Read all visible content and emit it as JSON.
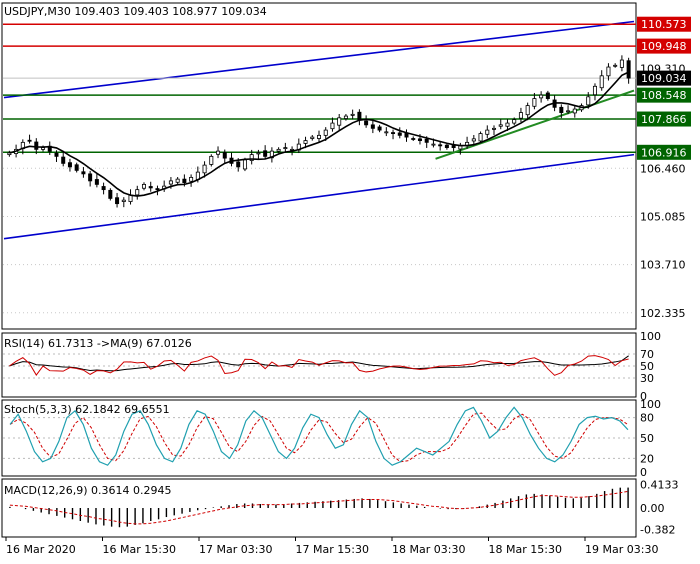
{
  "chart_data": [
    {
      "type": "candlestick",
      "title": "USDJPY,M30  109.403 109.403 108.977 109.034",
      "symbol": "USDJPY,M30",
      "ylim": [
        101.9,
        111.15
      ],
      "y_ticks": [
        {
          "value": 102.335,
          "label": "102.335"
        },
        {
          "value": 103.71,
          "label": "103.710"
        },
        {
          "value": 105.085,
          "label": "105.085"
        },
        {
          "value": 106.46,
          "label": "106.460"
        }
      ],
      "x_labels": [
        "16 Mar 2020",
        "16 Mar 15:30",
        "17 Mar 03:30",
        "17 Mar 15:30",
        "18 Mar 03:30",
        "18 Mar 15:30",
        "19 Mar 03:30"
      ],
      "price_levels": [
        {
          "label": "110.573",
          "value": 110.573,
          "kind": "resistance",
          "color": "#d40000",
          "badge_bg": "#d40000",
          "badge_fg": "#ffffff"
        },
        {
          "label": "109.948",
          "value": 109.948,
          "kind": "resistance",
          "color": "#d40000",
          "badge_bg": "#d40000",
          "badge_fg": "#ffffff"
        },
        {
          "label": "109.034",
          "value": 109.034,
          "kind": "current",
          "color": "#c0c0c0",
          "badge_bg": "#000000",
          "badge_fg": "#ffffff"
        },
        {
          "label": "108.548",
          "value": 108.548,
          "kind": "support",
          "color": "#006400",
          "badge_bg": "#006400",
          "badge_fg": "#ffffff"
        },
        {
          "label": "107.866",
          "value": 107.866,
          "kind": "support",
          "color": "#006400",
          "badge_bg": "#006400",
          "badge_fg": "#ffffff"
        },
        {
          "label": "106.916",
          "value": 106.916,
          "kind": "support",
          "color": "#006400",
          "badge_bg": "#006400",
          "badge_fg": "#ffffff"
        }
      ],
      "hidden_tick_label": "109.310",
      "channel": {
        "color": "#0000cc",
        "upper": [
          [
            0,
            108.48
          ],
          [
            1,
            110.65
          ]
        ],
        "lower": [
          [
            0,
            104.45
          ],
          [
            1,
            106.85
          ]
        ]
      },
      "trendline": {
        "color": "#228b22",
        "points": [
          [
            0.685,
            106.73
          ],
          [
            1,
            108.68
          ]
        ]
      },
      "closes": [
        106.9,
        107.0,
        107.2,
        107.25,
        107.0,
        107.05,
        106.95,
        106.8,
        106.6,
        106.5,
        106.4,
        106.3,
        106.1,
        106.0,
        105.85,
        105.6,
        105.45,
        105.55,
        105.7,
        105.85,
        106.0,
        105.9,
        105.85,
        105.95,
        106.1,
        106.15,
        106.05,
        106.2,
        106.35,
        106.55,
        106.8,
        106.95,
        106.75,
        106.6,
        106.5,
        106.7,
        106.85,
        106.9,
        106.8,
        106.95,
        107.0,
        107.05,
        107.0,
        107.15,
        107.25,
        107.35,
        107.4,
        107.55,
        107.75,
        107.9,
        107.95,
        108.0,
        107.85,
        107.7,
        107.6,
        107.55,
        107.5,
        107.45,
        107.4,
        107.35,
        107.3,
        107.25,
        107.2,
        107.15,
        107.1,
        107.05,
        107.05,
        107.1,
        107.2,
        107.3,
        107.45,
        107.55,
        107.6,
        107.7,
        107.75,
        107.85,
        108.05,
        108.25,
        108.45,
        108.55,
        108.45,
        108.2,
        108.05,
        108.1,
        108.15,
        108.25,
        108.5,
        108.8,
        109.1,
        109.35,
        109.4,
        109.55,
        109.034
      ],
      "moving_average_color": "#000000"
    },
    {
      "type": "line",
      "title": "RSI(14) 61.7313  ->MA(9) 67.0126",
      "ylim": [
        0,
        100
      ],
      "y_ticks": [
        {
          "value": 100,
          "label": "100"
        },
        {
          "value": 70,
          "label": "70"
        },
        {
          "value": 50,
          "label": "50"
        },
        {
          "value": 30,
          "label": "30"
        },
        {
          "value": 0,
          "label": "0"
        }
      ],
      "series": [
        {
          "name": "RSI(14)",
          "color": "#d00000",
          "last": 61.7313
        },
        {
          "name": "MA(9)",
          "color": "#000000",
          "last": 67.0126
        }
      ]
    },
    {
      "type": "line",
      "title": "Stoch(5,3,3) 62.1842 69.6551",
      "ylim": [
        0,
        100
      ],
      "y_ticks": [
        {
          "value": 100,
          "label": "100"
        },
        {
          "value": 80,
          "label": "80"
        },
        {
          "value": 50,
          "label": "50"
        },
        {
          "value": 20,
          "label": "20"
        },
        {
          "value": 0,
          "label": "0"
        }
      ],
      "series": [
        {
          "name": "Main",
          "color": "#20a0b0",
          "last": 62.1842
        },
        {
          "name": "Signal",
          "color": "#d00000",
          "last": 69.6551
        }
      ],
      "main_values": [
        70,
        85,
        60,
        30,
        15,
        20,
        45,
        80,
        90,
        70,
        35,
        15,
        10,
        25,
        60,
        85,
        90,
        70,
        40,
        20,
        15,
        35,
        70,
        90,
        85,
        60,
        30,
        20,
        40,
        75,
        90,
        80,
        55,
        30,
        20,
        35,
        65,
        85,
        80,
        55,
        35,
        40,
        70,
        90,
        80,
        45,
        20,
        10,
        15,
        25,
        35,
        30,
        25,
        35,
        45,
        70,
        90,
        95,
        75,
        50,
        60,
        80,
        95,
        80,
        55,
        35,
        20,
        15,
        25,
        45,
        70,
        80,
        82,
        78,
        80,
        75,
        62
      ]
    },
    {
      "type": "bar",
      "title": "MACD(12,26,9) 0.3614 0.2945",
      "ylim": [
        -0.46,
        0.46
      ],
      "y_ticks": [
        {
          "value": 0.4133,
          "label": "0.4133"
        },
        {
          "value": 0.0,
          "label": "0.00"
        },
        {
          "value": -0.382,
          "label": "-0.382"
        }
      ],
      "series": [
        {
          "name": "MACD",
          "color": "#000000",
          "last": 0.3614
        },
        {
          "name": "Signal",
          "color": "#d00000",
          "last": 0.2945
        }
      ],
      "macd_values": [
        0.02,
        0.0,
        -0.02,
        -0.05,
        -0.08,
        -0.11,
        -0.14,
        -0.17,
        -0.2,
        -0.23,
        -0.26,
        -0.29,
        -0.31,
        -0.33,
        -0.34,
        -0.33,
        -0.3,
        -0.27,
        -0.23,
        -0.2,
        -0.16,
        -0.13,
        -0.1,
        -0.07,
        -0.04,
        -0.02,
        0.01,
        0.03,
        0.05,
        0.07,
        0.08,
        0.08,
        0.07,
        0.06,
        0.06,
        0.07,
        0.08,
        0.09,
        0.1,
        0.11,
        0.12,
        0.13,
        0.14,
        0.15,
        0.16,
        0.17,
        0.16,
        0.14,
        0.12,
        0.1,
        0.08,
        0.06,
        0.04,
        0.02,
        0.0,
        -0.01,
        -0.02,
        -0.02,
        -0.01,
        0.01,
        0.03,
        0.06,
        0.09,
        0.13,
        0.17,
        0.21,
        0.24,
        0.25,
        0.24,
        0.22,
        0.2,
        0.18,
        0.17,
        0.18,
        0.21,
        0.25,
        0.3,
        0.34,
        0.36,
        0.3614
      ],
      "signal_values": [
        0.05,
        0.04,
        0.03,
        0.01,
        -0.01,
        -0.03,
        -0.05,
        -0.08,
        -0.1,
        -0.13,
        -0.15,
        -0.18,
        -0.2,
        -0.22,
        -0.25,
        -0.27,
        -0.28,
        -0.28,
        -0.27,
        -0.25,
        -0.23,
        -0.2,
        -0.17,
        -0.14,
        -0.11,
        -0.08,
        -0.05,
        -0.02,
        0.0,
        0.02,
        0.04,
        0.05,
        0.06,
        0.06,
        0.06,
        0.06,
        0.07,
        0.07,
        0.08,
        0.09,
        0.1,
        0.11,
        0.12,
        0.13,
        0.14,
        0.15,
        0.15,
        0.15,
        0.14,
        0.13,
        0.11,
        0.09,
        0.07,
        0.05,
        0.03,
        0.02,
        0.0,
        -0.01,
        -0.01,
        0.0,
        0.01,
        0.03,
        0.05,
        0.08,
        0.11,
        0.14,
        0.17,
        0.2,
        0.22,
        0.22,
        0.21,
        0.2,
        0.19,
        0.19,
        0.2,
        0.21,
        0.23,
        0.25,
        0.27,
        0.2945
      ]
    }
  ]
}
